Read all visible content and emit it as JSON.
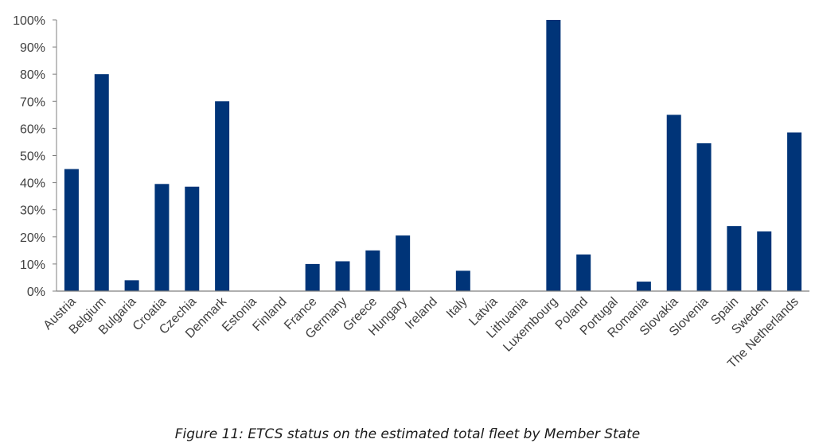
{
  "figure": {
    "caption": "Figure 11: ETCS status on the estimated total fleet by Member State"
  },
  "chart_data": {
    "type": "bar",
    "categories": [
      "Austria",
      "Belgium",
      "Bulgaria",
      "Croatia",
      "Czechia",
      "Denmark",
      "Estonia",
      "Finland",
      "France",
      "Germany",
      "Greece",
      "Hungary",
      "Ireland",
      "Italy",
      "Latvia",
      "Lithuania",
      "Luxembourg",
      "Poland",
      "Portugal",
      "Romania",
      "Slovakia",
      "Slovenia",
      "Spain",
      "Sweden",
      "The Netherlands"
    ],
    "values": [
      45,
      80,
      4,
      39.5,
      38.5,
      70,
      0,
      0,
      10,
      11,
      15,
      20.5,
      0,
      7.5,
      0,
      0,
      100,
      13.5,
      0,
      3.5,
      65,
      54.5,
      24,
      22,
      58.5
    ],
    "y_ticks": [
      "0%",
      "10%",
      "20%",
      "30%",
      "40%",
      "50%",
      "60%",
      "70%",
      "80%",
      "90%",
      "100%"
    ],
    "ylim": [
      0,
      100
    ],
    "grid": false,
    "legend": "none",
    "bar_color": "#003478",
    "axis_color": "#7f7f7f",
    "title": "",
    "xlabel": "",
    "ylabel": ""
  }
}
